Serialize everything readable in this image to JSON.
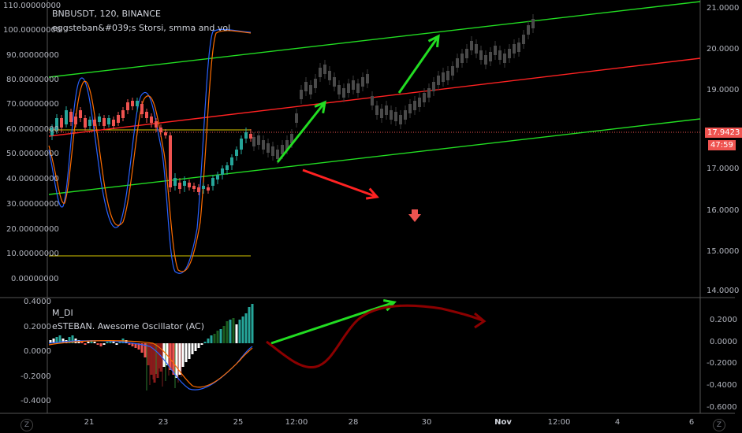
{
  "header": {
    "symbol": "BNBUSDT, 120, BINANCE",
    "indicator1": "eggsteban&#039;s Storsi, smma and vol"
  },
  "sub_panel": {
    "title1": "M_DI",
    "title2": "eSTEBAN. Awesome Oscillator (AC)"
  },
  "left_axis_labels": [
    "110.00000000",
    "100.00000000",
    "90.00000000",
    "80.00000000",
    "70.00000000",
    "60.00000000",
    "50.00000000",
    "40.00000000",
    "30.00000000",
    "20.00000000",
    "10.00000000",
    "0.00000000"
  ],
  "right_axis_labels": [
    "21.0000",
    "20.0000",
    "19.0000",
    "17.0000",
    "16.0000",
    "15.0000",
    "14.0000"
  ],
  "price_box": {
    "price": "17.9423",
    "countdown": "47:59",
    "price_color": "#ef5350"
  },
  "sub_left_labels": [
    "0.4000",
    "0.2000",
    "0.0000",
    "-0.2000",
    "-0.4000"
  ],
  "sub_right_labels": [
    "0.2000",
    "0.0000",
    "-0.2000",
    "-0.4000",
    "-0.6000"
  ],
  "x_labels": [
    "21",
    "23",
    "25",
    "12:00",
    "28",
    "30",
    "Nov",
    "12:00",
    "4",
    "6"
  ],
  "corner_left": "Z",
  "corner_right": "Z",
  "colors": {
    "bg": "#000000",
    "up": "#26a69a",
    "down": "#ef5350",
    "green_line": "#22dd22",
    "red_line": "#ff2222",
    "yellow": "#d8c800"
  }
}
